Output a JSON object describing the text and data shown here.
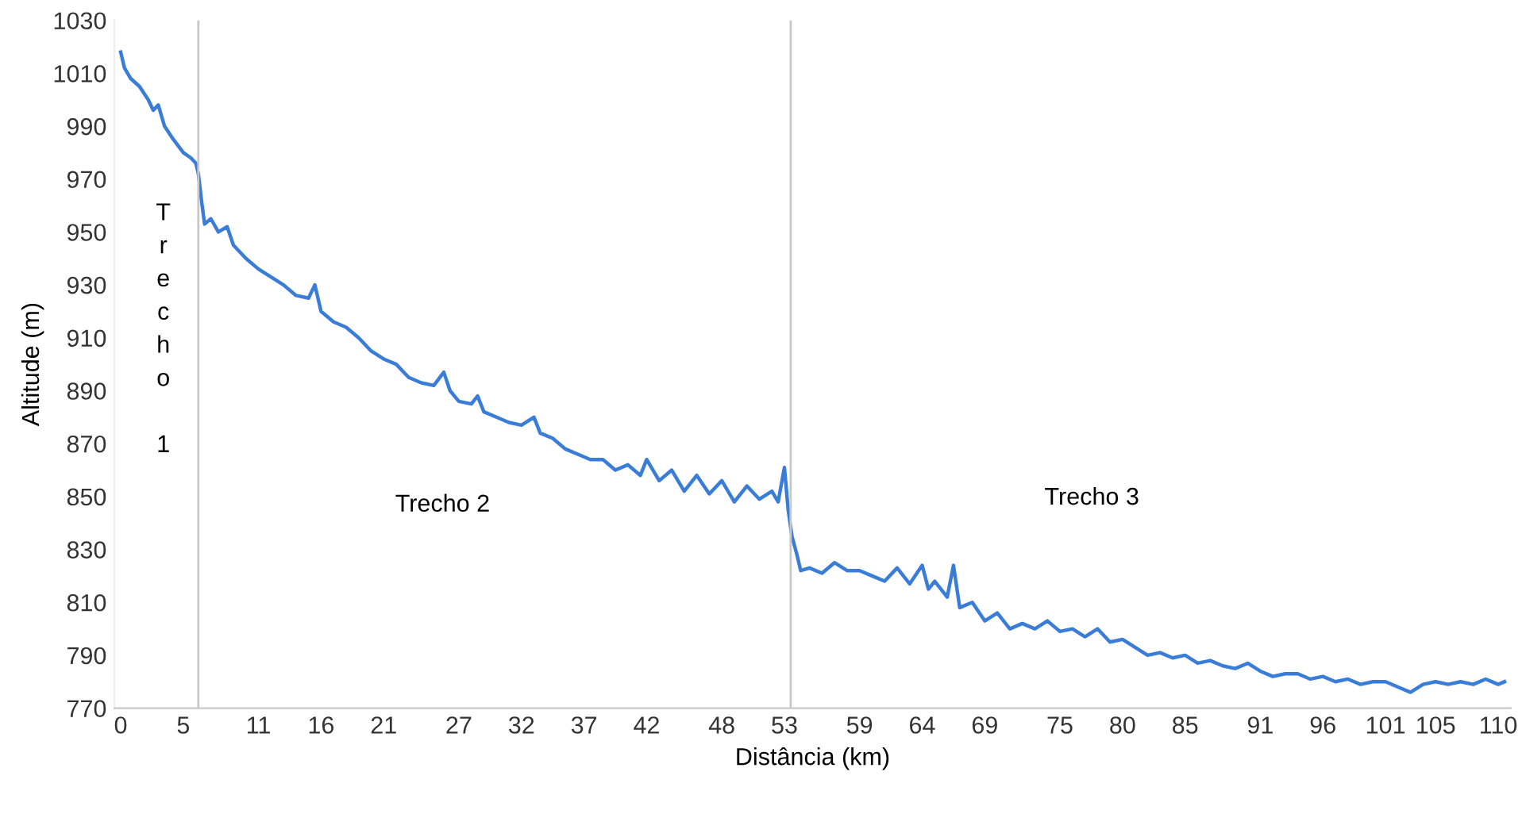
{
  "chart_data": {
    "type": "line",
    "xlabel": "Distância (km)",
    "ylabel": "Altitude (m)",
    "x": [
      0,
      0.3,
      0.8,
      1.5,
      2.2,
      2.6,
      3.0,
      3.5,
      4.2,
      5,
      5.6,
      6.0,
      6.2,
      6.5,
      6.7,
      7.2,
      7.8,
      8.5,
      9,
      10,
      11,
      12,
      13,
      14,
      15,
      15.5,
      16,
      17,
      18,
      19,
      20,
      21,
      22,
      23,
      24,
      25,
      25.8,
      26.3,
      27,
      28,
      28.5,
      29,
      30,
      31,
      32,
      33,
      33.5,
      34.5,
      35.5,
      36.5,
      37.5,
      38.5,
      39.5,
      40.5,
      41.5,
      42,
      43,
      44,
      45,
      46,
      47,
      48,
      49,
      50,
      51,
      52,
      52.5,
      53,
      53.3,
      53.6,
      54,
      54.3,
      55,
      56,
      57,
      58,
      59,
      60,
      61,
      62,
      63,
      64,
      64.5,
      65,
      66,
      66.5,
      67,
      68,
      69,
      70,
      71,
      72,
      73,
      74,
      75,
      76,
      77,
      78,
      79,
      80,
      81,
      82,
      83,
      84,
      85,
      86,
      87,
      88,
      89,
      90,
      91,
      92,
      93,
      94,
      95,
      96,
      97,
      98,
      99,
      100,
      101,
      102,
      103,
      104,
      105,
      106,
      107,
      108,
      109,
      110,
      110.5
    ],
    "series": [
      {
        "color": "#3a7dd8",
        "values": [
          1018,
          1012,
          1008,
          1005,
          1000,
          996,
          998,
          990,
          985,
          980,
          978,
          976,
          972,
          960,
          953,
          955,
          950,
          952,
          945,
          940,
          936,
          933,
          930,
          926,
          925,
          930,
          920,
          916,
          914,
          910,
          905,
          902,
          900,
          895,
          893,
          892,
          897,
          890,
          886,
          885,
          888,
          882,
          880,
          878,
          877,
          880,
          874,
          872,
          868,
          866,
          864,
          864,
          860,
          862,
          858,
          864,
          856,
          860,
          852,
          858,
          851,
          856,
          848,
          854,
          849,
          852,
          848,
          861,
          845,
          835,
          828,
          822,
          823,
          821,
          825,
          822,
          822,
          820,
          818,
          823,
          817,
          824,
          815,
          818,
          812,
          824,
          808,
          810,
          803,
          806,
          800,
          802,
          800,
          803,
          799,
          800,
          797,
          800,
          795,
          796,
          793,
          790,
          791,
          789,
          790,
          787,
          788,
          786,
          785,
          787,
          784,
          782,
          783,
          783,
          781,
          782,
          780,
          781,
          779,
          780,
          780,
          778,
          776,
          779,
          780,
          779,
          780,
          779,
          781,
          779,
          780
        ]
      }
    ],
    "xlim": [
      -0.5,
      111
    ],
    "xticks": [
      0,
      5,
      11,
      16,
      21,
      27,
      32,
      37,
      42,
      48,
      53,
      59,
      64,
      69,
      75,
      80,
      85,
      91,
      96,
      101,
      105,
      110
    ],
    "ylim": [
      770,
      1030
    ],
    "yticks": [
      770,
      790,
      810,
      830,
      850,
      870,
      890,
      910,
      930,
      950,
      970,
      990,
      1010,
      1030
    ],
    "ref_lines": [
      {
        "axis": "x",
        "value": 6.2,
        "color": "#c8c8c8"
      },
      {
        "axis": "x",
        "value": 53.5,
        "color": "#c8c8c8"
      }
    ],
    "annotations": [
      "T\nr\ne\nc\nh\no\n\n1",
      "Trecho 2",
      "Trecho 3"
    ],
    "grid": false,
    "legend": false,
    "marker": "none",
    "line_style": "solid"
  }
}
